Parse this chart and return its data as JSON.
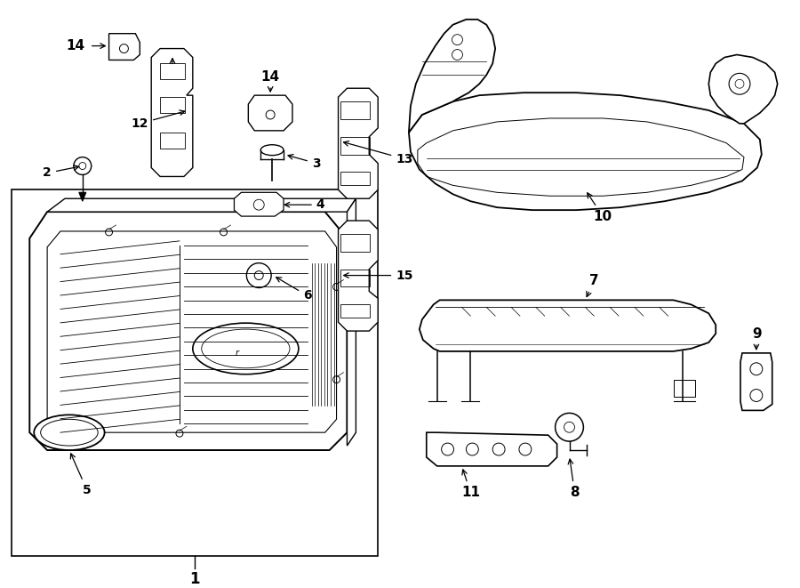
{
  "bg": "#ffffff",
  "lc": "#000000",
  "lw_main": 1.2,
  "lw_thin": 0.6,
  "lw_detail": 0.4,
  "fs_num": 11,
  "fs_small": 9
}
